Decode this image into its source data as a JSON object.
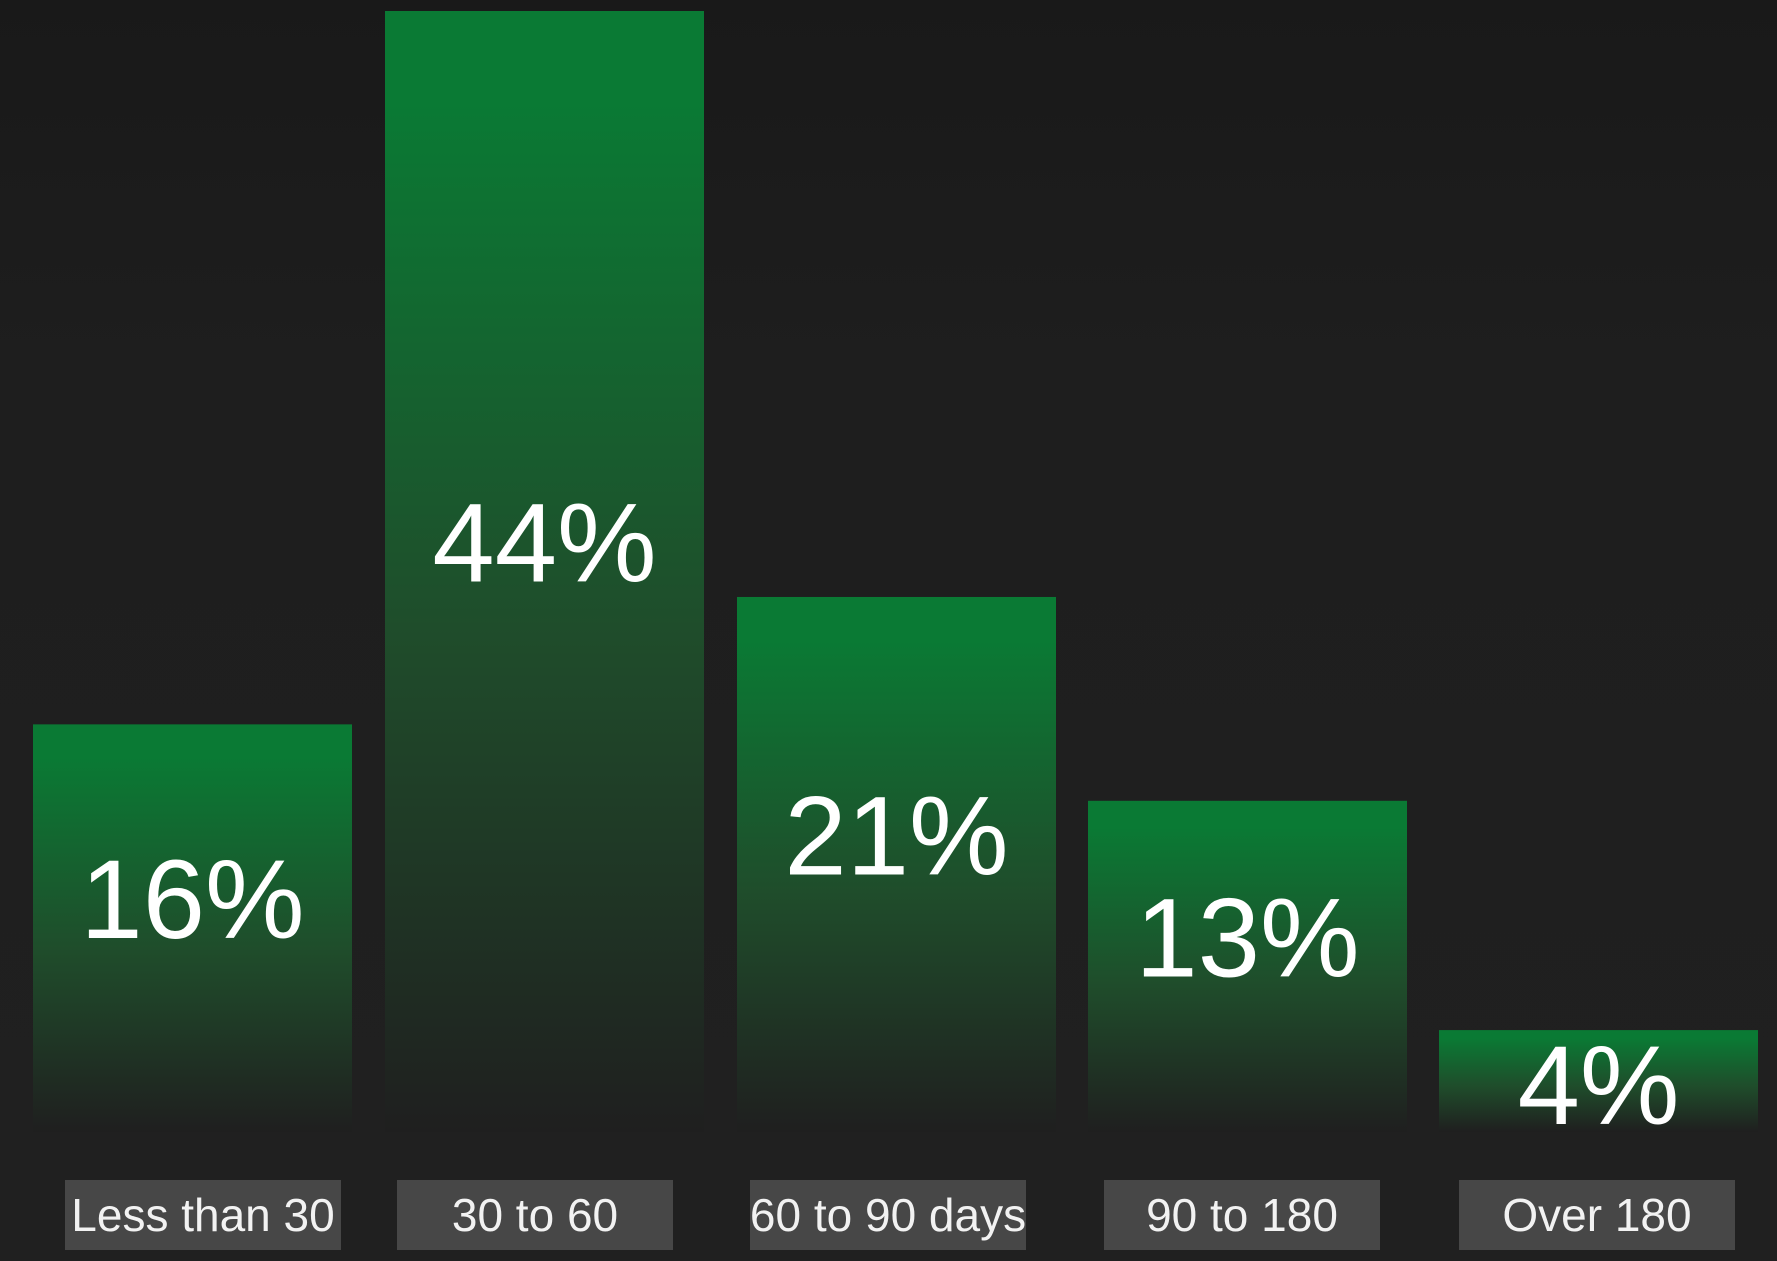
{
  "colors": {
    "background": "#1e1e1e",
    "bar_top": "#0a7a34",
    "bar_bottom": "#1f1f1f",
    "label_box": "#474747",
    "value_text": "#ffffff",
    "category_text": "#f2f2f2"
  },
  "chart_data": {
    "type": "bar",
    "title": "",
    "xlabel": "",
    "ylabel": "",
    "ylim": [
      0,
      44
    ],
    "grid": false,
    "legend": "none",
    "categories": [
      "Less than 30",
      "30 to 60",
      "60 to 90 days",
      "90 to 180",
      "Over 180"
    ],
    "values": [
      16,
      44,
      21,
      13,
      4
    ],
    "value_labels": [
      "16%",
      "44%",
      "21%",
      "13%",
      "4%"
    ]
  }
}
